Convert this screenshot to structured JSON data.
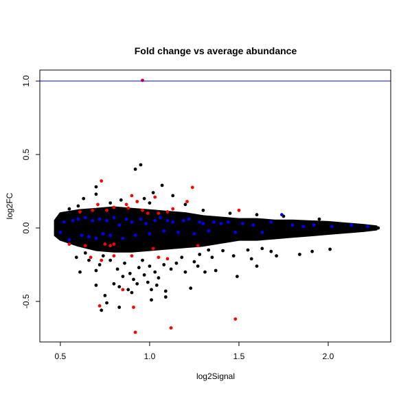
{
  "chart_data": {
    "type": "scatter",
    "title": "Fold change vs average abundance",
    "xlabel": "log2Signal",
    "ylabel": "log2FC",
    "xlim": [
      0.385,
      2.35
    ],
    "ylim": [
      -0.776,
      1.075
    ],
    "xticks": [
      0.5,
      1.0,
      1.5,
      2.0
    ],
    "xtick_labels": [
      "0.5",
      "1.0",
      "1.5",
      "2.0"
    ],
    "yticks": [
      -0.5,
      0.0,
      0.5,
      1.0
    ],
    "ytick_labels": [
      "-0.5",
      "0.0",
      "0.5",
      "1.0"
    ],
    "grid": false,
    "hline": {
      "y": 1.0,
      "color": "#0000ff"
    },
    "colors": {
      "black": "#000000",
      "blue": "#0000ff",
      "red": "#ff0000"
    },
    "dense_band_envelope": {
      "x": [
        0.47,
        0.5,
        0.6,
        0.7,
        0.8,
        0.9,
        1.0,
        1.1,
        1.2,
        1.3,
        1.4,
        1.5,
        1.6,
        1.7,
        1.8,
        1.9,
        2.0,
        2.1,
        2.2,
        2.27
      ],
      "upper": [
        0.05,
        0.1,
        0.12,
        0.13,
        0.14,
        0.13,
        0.12,
        0.11,
        0.1,
        0.08,
        0.07,
        0.06,
        0.06,
        0.05,
        0.05,
        0.045,
        0.04,
        0.03,
        0.02,
        0.01
      ],
      "lower": [
        -0.05,
        -0.08,
        -0.12,
        -0.15,
        -0.16,
        -0.16,
        -0.15,
        -0.14,
        -0.13,
        -0.12,
        -0.1,
        -0.08,
        -0.08,
        -0.07,
        -0.06,
        -0.05,
        -0.04,
        -0.03,
        -0.02,
        -0.01
      ]
    },
    "series": [
      {
        "name": "black",
        "color": "#000000",
        "points": [
          [
            1.07,
            0.29
          ],
          [
            0.95,
            0.43
          ],
          [
            0.92,
            0.4
          ],
          [
            0.7,
            0.28
          ],
          [
            0.7,
            0.23
          ],
          [
            0.63,
            0.2
          ],
          [
            0.97,
            0.2
          ],
          [
            1.02,
            0.24
          ],
          [
            1.13,
            0.22
          ],
          [
            1.0,
            0.17
          ],
          [
            0.84,
            0.19
          ],
          [
            0.78,
            0.17
          ],
          [
            0.59,
            -0.2
          ],
          [
            0.61,
            -0.3
          ],
          [
            0.7,
            -0.29
          ],
          [
            0.7,
            -0.39
          ],
          [
            0.75,
            -0.46
          ],
          [
            0.76,
            -0.51
          ],
          [
            0.73,
            -0.56
          ],
          [
            0.83,
            -0.54
          ],
          [
            0.8,
            -0.38
          ],
          [
            0.83,
            -0.4
          ],
          [
            0.9,
            -0.44
          ],
          [
            0.88,
            -0.42
          ],
          [
            0.93,
            -0.38
          ],
          [
            0.97,
            -0.32
          ],
          [
            1.01,
            -0.42
          ],
          [
            1.01,
            -0.49
          ],
          [
            1.05,
            -0.34
          ],
          [
            1.09,
            -0.43
          ],
          [
            1.09,
            -0.47
          ],
          [
            1.08,
            -0.25
          ],
          [
            1.15,
            -0.24
          ],
          [
            1.23,
            -0.41
          ],
          [
            1.2,
            -0.3
          ],
          [
            1.31,
            -0.3
          ],
          [
            1.37,
            -0.29
          ],
          [
            1.49,
            -0.33
          ],
          [
            1.57,
            -0.21
          ],
          [
            1.6,
            -0.26
          ],
          [
            1.47,
            -0.19
          ],
          [
            1.33,
            -0.15
          ],
          [
            1.41,
            -0.155
          ],
          [
            1.84,
            -0.18
          ],
          [
            1.91,
            -0.16
          ],
          [
            2.01,
            -0.145
          ],
          [
            1.68,
            -0.16
          ],
          [
            1.71,
            -0.19
          ],
          [
            0.66,
            -0.22
          ],
          [
            0.72,
            -0.25
          ],
          [
            0.78,
            -0.22
          ],
          [
            0.82,
            -0.28
          ],
          [
            0.86,
            -0.24
          ],
          [
            0.89,
            -0.31
          ],
          [
            0.94,
            -0.27
          ],
          [
            0.96,
            -0.22
          ],
          [
            1.0,
            -0.26
          ],
          [
            1.03,
            -0.3
          ],
          [
            1.12,
            -0.28
          ],
          [
            1.18,
            -0.2
          ],
          [
            1.25,
            -0.23
          ],
          [
            1.28,
            -0.18
          ],
          [
            0.85,
            -0.33
          ],
          [
            0.91,
            -0.35
          ],
          [
            0.99,
            -0.37
          ],
          [
            1.04,
            -0.39
          ],
          [
            1.27,
            -0.26
          ],
          [
            1.35,
            -0.2
          ],
          [
            1.55,
            -0.15
          ],
          [
            1.63,
            -0.14
          ],
          [
            0.64,
            -0.17
          ],
          [
            0.74,
            -0.19
          ],
          [
            1.2,
            0.16
          ],
          [
            1.3,
            0.12
          ],
          [
            1.45,
            0.1
          ],
          [
            1.6,
            0.09
          ],
          [
            0.55,
            0.13
          ],
          [
            0.6,
            0.15
          ],
          [
            1.75,
            0.08
          ],
          [
            1.95,
            0.06
          ],
          [
            2.28,
            0.0
          ]
        ]
      },
      {
        "name": "blue",
        "color": "#0000ff",
        "points": [
          [
            0.5,
            -0.03
          ],
          [
            0.52,
            0.04
          ],
          [
            0.55,
            -0.08
          ],
          [
            0.57,
            0.05
          ],
          [
            0.6,
            0.06
          ],
          [
            0.62,
            -0.05
          ],
          [
            0.64,
            0.07
          ],
          [
            0.66,
            -0.06
          ],
          [
            0.68,
            0.05
          ],
          [
            0.7,
            -0.07
          ],
          [
            0.72,
            0.06
          ],
          [
            0.74,
            -0.04
          ],
          [
            0.76,
            0.05
          ],
          [
            0.78,
            -0.05
          ],
          [
            0.8,
            0.07
          ],
          [
            0.83,
            0.02
          ],
          [
            0.85,
            -0.07
          ],
          [
            0.87,
            0.06
          ],
          [
            0.9,
            0.04
          ],
          [
            0.92,
            -0.05
          ],
          [
            0.95,
            0.06
          ],
          [
            0.98,
            0.03
          ],
          [
            1.0,
            -0.04
          ],
          [
            1.03,
            0.05
          ],
          [
            1.06,
            0.07
          ],
          [
            1.08,
            -0.02
          ],
          [
            1.1,
            0.05
          ],
          [
            1.13,
            0.04
          ],
          [
            1.16,
            -0.03
          ],
          [
            1.19,
            0.05
          ],
          [
            1.22,
            0.06
          ],
          [
            1.25,
            -0.04
          ],
          [
            1.28,
            0.04
          ],
          [
            1.3,
            0.03
          ],
          [
            1.33,
            -0.02
          ],
          [
            1.36,
            0.04
          ],
          [
            1.4,
            0.03
          ],
          [
            1.44,
            0.04
          ],
          [
            1.48,
            -0.03
          ],
          [
            1.52,
            0.03
          ],
          [
            1.58,
            0.02
          ],
          [
            1.63,
            -0.03
          ],
          [
            1.68,
            0.04
          ],
          [
            1.74,
            0.09
          ],
          [
            1.8,
            0.02
          ],
          [
            1.86,
            0.01
          ],
          [
            1.92,
            0.02
          ],
          [
            2.02,
            0.01
          ],
          [
            2.13,
            0.02
          ],
          [
            2.22,
            0.01
          ]
        ]
      },
      {
        "name": "red",
        "color": "#ff0000",
        "points": [
          [
            0.96,
            1.005
          ],
          [
            0.73,
            0.32
          ],
          [
            1.24,
            0.276
          ],
          [
            0.9,
            0.22
          ],
          [
            1.03,
            0.21
          ],
          [
            0.93,
            0.18
          ],
          [
            1.21,
            0.18
          ],
          [
            1.5,
            0.12
          ],
          [
            0.71,
            0.16
          ],
          [
            0.87,
            0.16
          ],
          [
            0.61,
            0.11
          ],
          [
            0.68,
            0.12
          ],
          [
            0.76,
            0.12
          ],
          [
            0.8,
            0.14
          ],
          [
            0.88,
            0.135
          ],
          [
            0.96,
            0.12
          ],
          [
            0.99,
            0.1
          ],
          [
            1.05,
            0.1
          ],
          [
            1.1,
            0.11
          ],
          [
            1.13,
            0.13
          ],
          [
            0.55,
            -0.11
          ],
          [
            0.64,
            -0.12
          ],
          [
            0.78,
            -0.12
          ],
          [
            0.8,
            -0.11
          ],
          [
            0.75,
            -0.11
          ],
          [
            1.02,
            -0.14
          ],
          [
            1.27,
            -0.12
          ],
          [
            0.67,
            -0.2
          ],
          [
            0.73,
            -0.22
          ],
          [
            0.8,
            -0.19
          ],
          [
            0.9,
            -0.19
          ],
          [
            1.05,
            -0.2
          ],
          [
            1.1,
            -0.21
          ],
          [
            0.85,
            -0.42
          ],
          [
            0.72,
            -0.53
          ],
          [
            0.91,
            -0.54
          ],
          [
            1.48,
            -0.62
          ],
          [
            1.12,
            -0.68
          ],
          [
            0.92,
            -0.71
          ]
        ]
      }
    ]
  }
}
